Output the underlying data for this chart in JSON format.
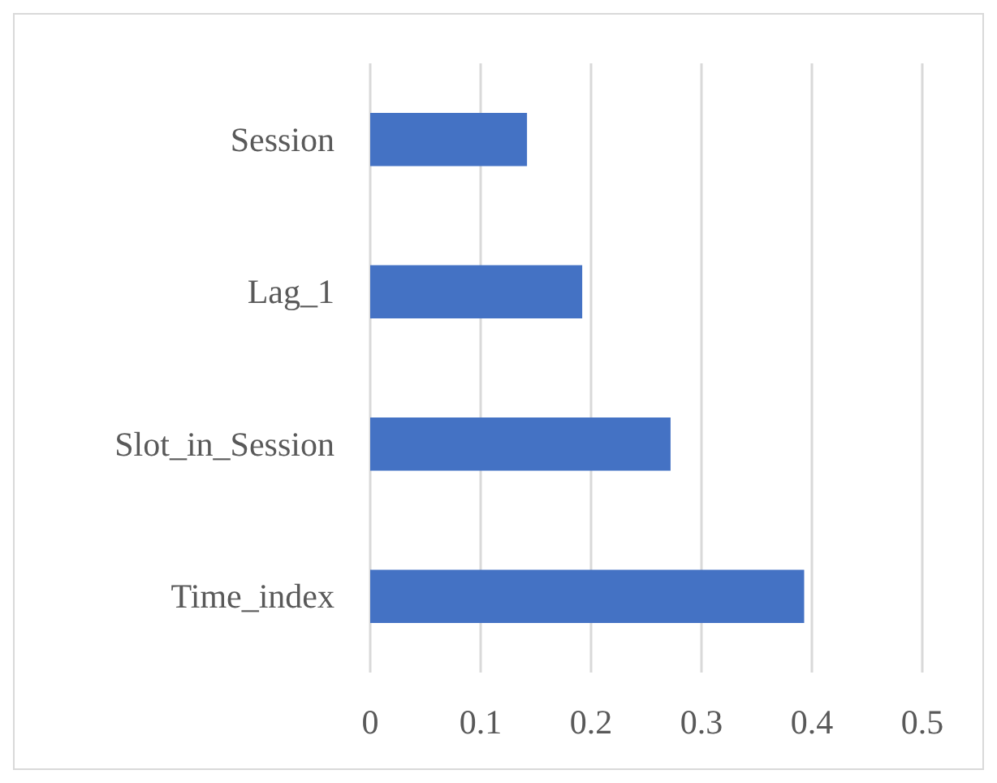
{
  "chart_data": {
    "type": "bar",
    "orientation": "horizontal",
    "categories": [
      "Session",
      "Lag_1",
      "Slot_in_Session",
      "Time_index"
    ],
    "values": [
      0.142,
      0.192,
      0.272,
      0.393
    ],
    "color": "#4472c4",
    "xlim": [
      0,
      0.5
    ],
    "xticks": [
      0,
      0.1,
      0.2,
      0.3,
      0.4,
      0.5
    ],
    "grid": "x"
  }
}
